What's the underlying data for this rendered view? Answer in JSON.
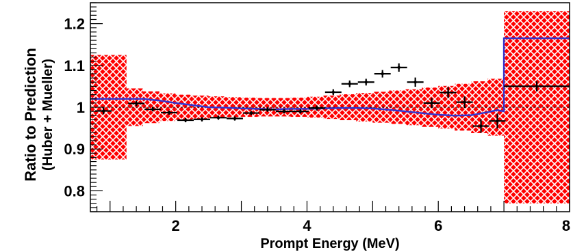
{
  "chart_data": {
    "type": "scatter",
    "title": "",
    "xlabel": "Prompt Energy (MeV)",
    "ylabel_line1": "Ratio to Prediction",
    "ylabel_line2": "(Huber + Mueller)",
    "xlim": [
      0.7,
      8.0
    ],
    "ylim": [
      0.75,
      1.25
    ],
    "x_ticks": [
      {
        "value": 2,
        "label": "2"
      },
      {
        "value": 4,
        "label": "4"
      },
      {
        "value": 6,
        "label": "6"
      },
      {
        "value": 8,
        "label": "8"
      }
    ],
    "y_ticks": [
      {
        "value": 0.8,
        "label": "0.8"
      },
      {
        "value": 0.9,
        "label": "0.9"
      },
      {
        "value": 1.0,
        "label": "1"
      },
      {
        "value": 1.1,
        "label": "1.1"
      },
      {
        "value": 1.2,
        "label": "1.2"
      }
    ],
    "grid": false,
    "colors": {
      "band": "#ff0000",
      "model": "#3333cc",
      "data": "#000000",
      "reference": "#000000"
    },
    "uncertainty_band": [
      {
        "x0": 0.7,
        "x1": 1.25,
        "low": 0.875,
        "high": 1.125
      },
      {
        "x0": 1.25,
        "x1": 1.5,
        "low": 0.955,
        "high": 1.045
      },
      {
        "x0": 1.5,
        "x1": 1.75,
        "low": 0.962,
        "high": 1.038
      },
      {
        "x0": 1.75,
        "x1": 2.0,
        "low": 0.967,
        "high": 1.033
      },
      {
        "x0": 2.0,
        "x1": 2.25,
        "low": 0.97,
        "high": 1.03
      },
      {
        "x0": 2.25,
        "x1": 2.5,
        "low": 0.972,
        "high": 1.028
      },
      {
        "x0": 2.5,
        "x1": 2.75,
        "low": 0.974,
        "high": 1.026
      },
      {
        "x0": 2.75,
        "x1": 3.0,
        "low": 0.976,
        "high": 1.024
      },
      {
        "x0": 3.0,
        "x1": 3.25,
        "low": 0.977,
        "high": 1.023
      },
      {
        "x0": 3.25,
        "x1": 3.5,
        "low": 0.978,
        "high": 1.022
      },
      {
        "x0": 3.5,
        "x1": 3.75,
        "low": 0.978,
        "high": 1.022
      },
      {
        "x0": 3.75,
        "x1": 4.0,
        "low": 0.977,
        "high": 1.023
      },
      {
        "x0": 4.0,
        "x1": 4.25,
        "low": 0.975,
        "high": 1.025
      },
      {
        "x0": 4.25,
        "x1": 4.5,
        "low": 0.972,
        "high": 1.028
      },
      {
        "x0": 4.5,
        "x1": 4.75,
        "low": 0.969,
        "high": 1.031
      },
      {
        "x0": 4.75,
        "x1": 5.0,
        "low": 0.966,
        "high": 1.034
      },
      {
        "x0": 5.0,
        "x1": 5.25,
        "low": 0.963,
        "high": 1.037
      },
      {
        "x0": 5.25,
        "x1": 5.5,
        "low": 0.96,
        "high": 1.04
      },
      {
        "x0": 5.5,
        "x1": 5.75,
        "low": 0.957,
        "high": 1.043
      },
      {
        "x0": 5.75,
        "x1": 6.0,
        "low": 0.953,
        "high": 1.047
      },
      {
        "x0": 6.0,
        "x1": 6.25,
        "low": 0.949,
        "high": 1.051
      },
      {
        "x0": 6.25,
        "x1": 6.5,
        "low": 0.944,
        "high": 1.056
      },
      {
        "x0": 6.5,
        "x1": 6.75,
        "low": 0.938,
        "high": 1.062
      },
      {
        "x0": 6.75,
        "x1": 7.0,
        "low": 0.932,
        "high": 1.068
      },
      {
        "x0": 7.0,
        "x1": 8.0,
        "low": 0.77,
        "high": 1.23
      }
    ],
    "model_curve": {
      "x": [
        0.7,
        1.25,
        1.5,
        1.75,
        2.0,
        2.25,
        2.5,
        2.75,
        3.0,
        3.25,
        3.5,
        3.75,
        4.0,
        4.25,
        4.5,
        4.75,
        5.0,
        5.25,
        5.5,
        5.75,
        6.0,
        6.25,
        6.5,
        6.75,
        6.9,
        7.0,
        7.0,
        8.0
      ],
      "y": [
        1.02,
        1.02,
        1.02,
        1.016,
        1.01,
        1.005,
        1.0,
        0.999,
        0.997,
        0.996,
        0.995,
        0.996,
        0.996,
        0.997,
        0.998,
        0.998,
        0.997,
        0.994,
        0.99,
        0.986,
        0.982,
        0.98,
        0.981,
        0.988,
        0.993,
        0.99,
        1.165,
        1.165
      ]
    },
    "reference_line": {
      "y": 1.0,
      "style": "dashed"
    },
    "data_points": [
      {
        "x": 0.9,
        "y": 0.991,
        "xerr": 0.125,
        "yerr": 0.008
      },
      {
        "x": 1.4,
        "y": 1.009,
        "xerr": 0.125,
        "yerr": 0.006
      },
      {
        "x": 1.65,
        "y": 0.995,
        "xerr": 0.125,
        "yerr": 0.005
      },
      {
        "x": 1.9,
        "y": 0.987,
        "xerr": 0.125,
        "yerr": 0.005
      },
      {
        "x": 2.15,
        "y": 0.969,
        "xerr": 0.125,
        "yerr": 0.005
      },
      {
        "x": 2.4,
        "y": 0.971,
        "xerr": 0.125,
        "yerr": 0.005
      },
      {
        "x": 2.65,
        "y": 0.975,
        "xerr": 0.125,
        "yerr": 0.005
      },
      {
        "x": 2.9,
        "y": 0.973,
        "xerr": 0.125,
        "yerr": 0.005
      },
      {
        "x": 3.15,
        "y": 0.986,
        "xerr": 0.125,
        "yerr": 0.005
      },
      {
        "x": 3.4,
        "y": 0.994,
        "xerr": 0.125,
        "yerr": 0.005
      },
      {
        "x": 3.65,
        "y": 0.99,
        "xerr": 0.125,
        "yerr": 0.005
      },
      {
        "x": 3.9,
        "y": 0.99,
        "xerr": 0.125,
        "yerr": 0.005
      },
      {
        "x": 4.15,
        "y": 0.998,
        "xerr": 0.125,
        "yerr": 0.006
      },
      {
        "x": 4.4,
        "y": 1.036,
        "xerr": 0.125,
        "yerr": 0.007
      },
      {
        "x": 4.65,
        "y": 1.056,
        "xerr": 0.125,
        "yerr": 0.008
      },
      {
        "x": 4.9,
        "y": 1.06,
        "xerr": 0.125,
        "yerr": 0.008
      },
      {
        "x": 5.15,
        "y": 1.08,
        "xerr": 0.125,
        "yerr": 0.009
      },
      {
        "x": 5.4,
        "y": 1.095,
        "xerr": 0.125,
        "yerr": 0.01
      },
      {
        "x": 5.65,
        "y": 1.06,
        "xerr": 0.125,
        "yerr": 0.011
      },
      {
        "x": 5.9,
        "y": 1.01,
        "xerr": 0.125,
        "yerr": 0.012
      },
      {
        "x": 6.15,
        "y": 1.035,
        "xerr": 0.125,
        "yerr": 0.013
      },
      {
        "x": 6.4,
        "y": 1.012,
        "xerr": 0.125,
        "yerr": 0.014
      },
      {
        "x": 6.65,
        "y": 0.955,
        "xerr": 0.125,
        "yerr": 0.016
      },
      {
        "x": 6.9,
        "y": 0.967,
        "xerr": 0.125,
        "yerr": 0.018
      },
      {
        "x": 7.5,
        "y": 1.05,
        "xerr": 0.5,
        "yerr": 0.012
      }
    ]
  }
}
